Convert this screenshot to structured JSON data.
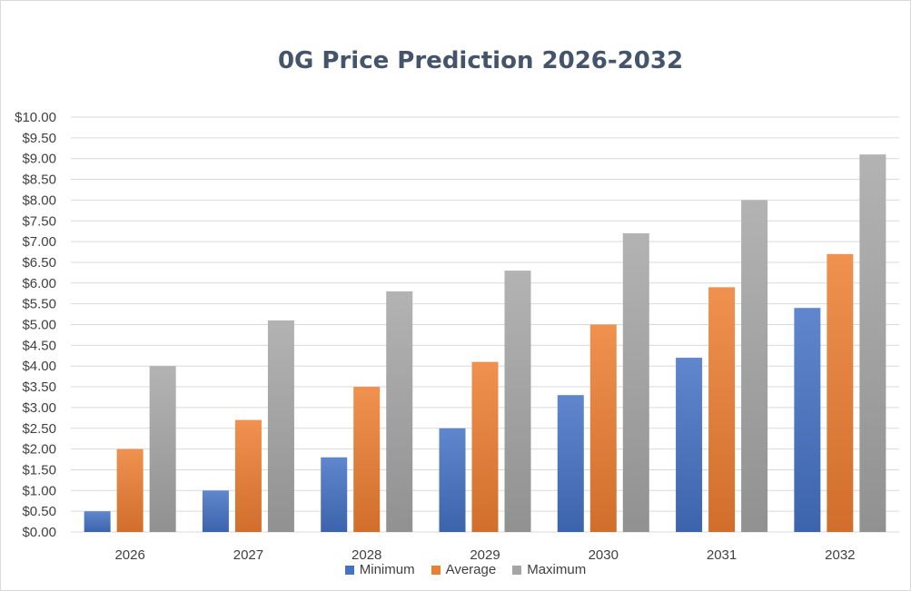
{
  "chart_data": {
    "type": "bar",
    "title": "0G Price Prediction 2026-2032",
    "categories": [
      "2026",
      "2027",
      "2028",
      "2029",
      "2030",
      "2031",
      "2032"
    ],
    "series": [
      {
        "name": "Minimum",
        "values": [
          0.5,
          1.0,
          1.8,
          2.5,
          3.3,
          4.2,
          5.4
        ],
        "color": "#4472c4"
      },
      {
        "name": "Average",
        "values": [
          2.0,
          2.7,
          3.5,
          4.1,
          5.0,
          5.9,
          6.7
        ],
        "color": "#ed7d31"
      },
      {
        "name": "Maximum",
        "values": [
          4.0,
          5.1,
          5.8,
          6.3,
          7.2,
          8.0,
          9.1
        ],
        "color": "#a5a5a5"
      }
    ],
    "xlabel": "",
    "ylabel": "",
    "ylim": [
      0,
      10
    ],
    "yticks": [
      "$0.00",
      "$0.50",
      "$1.00",
      "$1.50",
      "$2.00",
      "$2.50",
      "$3.00",
      "$3.50",
      "$4.00",
      "$4.50",
      "$5.00",
      "$5.50",
      "$6.00",
      "$6.50",
      "$7.00",
      "$7.50",
      "$8.00",
      "$8.50",
      "$9.00",
      "$9.50",
      "$10.00"
    ],
    "grid": true,
    "legend": "bottom"
  }
}
